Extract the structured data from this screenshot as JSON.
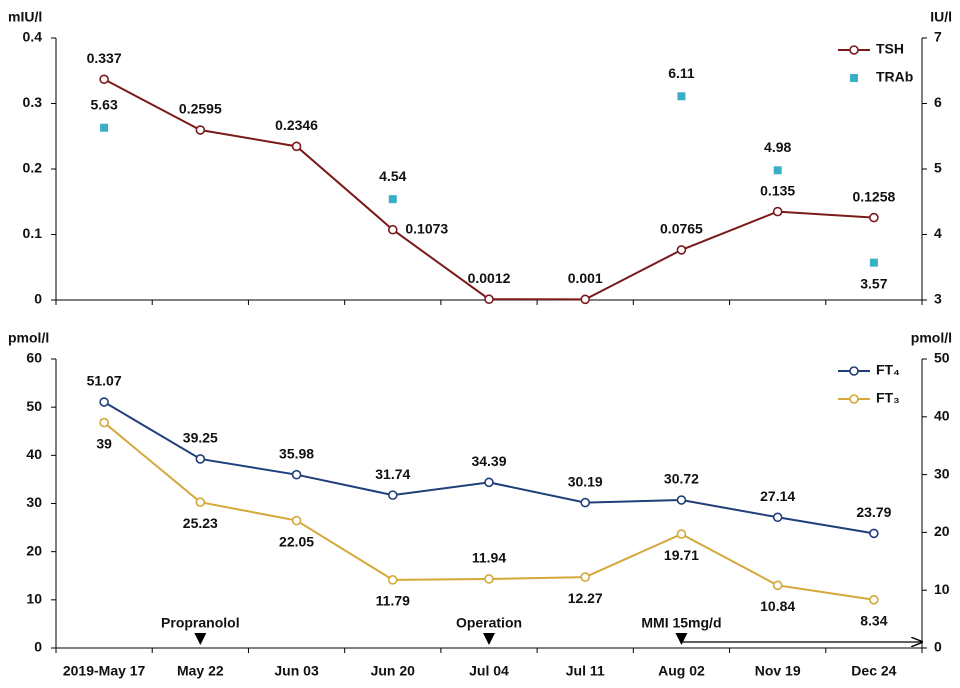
{
  "chart_data": [
    {
      "type": "line",
      "ylabel": "mIU/l",
      "y2label": "IU/l",
      "ylim": [
        0,
        0.4
      ],
      "yticks": [
        0,
        0.1,
        0.2,
        0.3,
        0.4
      ],
      "y2lim": [
        3,
        7
      ],
      "y2ticks": [
        3,
        4,
        5,
        6,
        7
      ],
      "series": [
        {
          "name": "TSH",
          "type": "line",
          "color": "#7b1a1a",
          "values": [
            0.337,
            0.2595,
            0.2346,
            0.1073,
            0.0012,
            0.001,
            0.0765,
            0.135,
            0.1258
          ]
        },
        {
          "name": "TRAb",
          "type": "scatter",
          "axis": "y2",
          "color": "#3ab0c8",
          "values": [
            5.63,
            null,
            null,
            4.54,
            null,
            null,
            6.11,
            4.98,
            3.57
          ]
        }
      ],
      "legend": "upper right"
    },
    {
      "type": "line",
      "ylabel": "pmol/l",
      "y2label": "pmol/l",
      "categories": [
        "2019-May 17",
        "May 22",
        "Jun 03",
        "Jun 20",
        "Jul 04",
        "Jul 11",
        "Aug 02",
        "Nov 19",
        "Dec 24"
      ],
      "ylim": [
        0,
        60
      ],
      "yticks": [
        0,
        10,
        20,
        30,
        40,
        50,
        60
      ],
      "y2lim": [
        0,
        50
      ],
      "y2ticks": [
        0,
        10,
        20,
        30,
        40,
        50
      ],
      "series": [
        {
          "name": "FT₄",
          "type": "line",
          "color": "#1f3e7a",
          "values": [
            51.07,
            39.25,
            35.98,
            31.74,
            34.39,
            30.19,
            30.72,
            27.14,
            23.79
          ]
        },
        {
          "name": "FT₃",
          "type": "line",
          "axis": "y2",
          "color": "#d4a83a",
          "values": [
            39,
            25.23,
            22.05,
            11.79,
            11.94,
            12.27,
            19.71,
            10.84,
            8.34
          ]
        }
      ],
      "annotations": [
        {
          "text": "Propranolol",
          "x": "May 22"
        },
        {
          "text": "Operation",
          "x": "Jul 04"
        },
        {
          "text": "MMI 15mg/d",
          "x": "Aug 02"
        }
      ],
      "legend": "upper right"
    }
  ]
}
